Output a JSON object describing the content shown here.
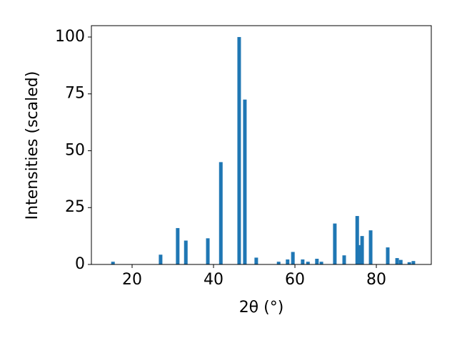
{
  "chart_data": {
    "type": "bar",
    "x_label": "2θ (°)",
    "y_label": "Intensities (scaled)",
    "color": "#1f77b4",
    "x": [
      15.3,
      27.0,
      31.2,
      33.2,
      38.6,
      41.8,
      46.3,
      47.7,
      50.5,
      56.0,
      58.2,
      59.5,
      61.9,
      63.2,
      65.4,
      66.5,
      69.8,
      72.1,
      75.3,
      75.8,
      76.5,
      78.6,
      82.8,
      85.1,
      86.0,
      88.1,
      89.1
    ],
    "values": [
      1.2,
      4.3,
      16,
      10.5,
      11.5,
      45,
      100,
      72.5,
      3,
      1.2,
      2.2,
      5.5,
      2.2,
      1.2,
      2.5,
      1.2,
      18,
      4,
      21.3,
      8.5,
      12.5,
      15,
      7.5,
      2.8,
      2,
      1,
      1.5
    ],
    "xlim": [
      10,
      93.5
    ],
    "ylim": [
      0,
      105
    ],
    "xticks": [
      20,
      40,
      60,
      80
    ],
    "yticks": [
      0,
      25,
      50,
      75,
      100
    ]
  }
}
